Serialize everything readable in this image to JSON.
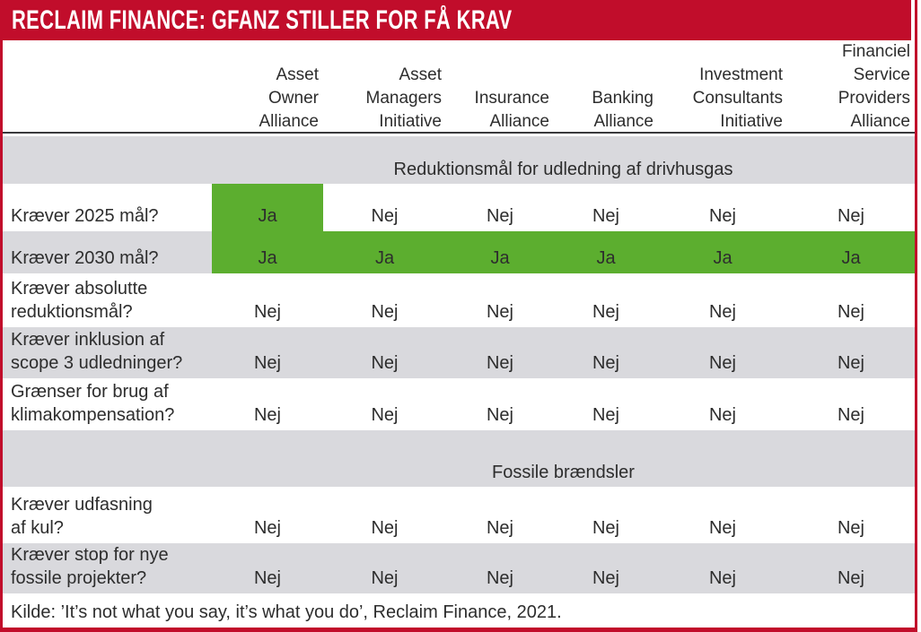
{
  "colors": {
    "red": "#c10d2b",
    "green": "#5cae2f",
    "gray": "#d9d9dd",
    "text": "#2d2d2d"
  },
  "chart_data": {
    "type": "table",
    "title": "RECLAIM FINANCE: GFANZ STILLER FOR FÅ KRAV",
    "yes_value": "Ja",
    "no_value": "Nej",
    "highlight_color": "#5cae2f",
    "column_headers": [
      [
        "Asset",
        "Owner",
        "Alliance"
      ],
      [
        "Asset",
        "Managers",
        "Initiative"
      ],
      [
        "Insurance",
        "Alliance"
      ],
      [
        "Banking",
        "Alliance"
      ],
      [
        "Investment",
        "Consultants",
        "Initiative"
      ],
      [
        "Financiel",
        "Service",
        "Providers",
        "Alliance"
      ]
    ],
    "sections": [
      {
        "heading": "Reduktionsmål for udledning af drivhusgas",
        "rows": [
          {
            "label_lines": [
              "Kræver 2025 mål?"
            ],
            "values": [
              "Ja",
              "Nej",
              "Nej",
              "Nej",
              "Nej",
              "Nej"
            ]
          },
          {
            "label_lines": [
              "Kræver 2030 mål?"
            ],
            "values": [
              "Ja",
              "Ja",
              "Ja",
              "Ja",
              "Ja",
              "Ja"
            ]
          },
          {
            "label_lines": [
              "Kræver absolutte",
              "reduktionsmål?"
            ],
            "values": [
              "Nej",
              "Nej",
              "Nej",
              "Nej",
              "Nej",
              "Nej"
            ]
          },
          {
            "label_lines": [
              "Kræver inklusion af",
              "scope 3 udledninger?"
            ],
            "values": [
              "Nej",
              "Nej",
              "Nej",
              "Nej",
              "Nej",
              "Nej"
            ]
          },
          {
            "label_lines": [
              "Grænser for brug af",
              "klimakompensation?"
            ],
            "values": [
              "Nej",
              "Nej",
              "Nej",
              "Nej",
              "Nej",
              "Nej"
            ]
          }
        ]
      },
      {
        "heading": "Fossile brændsler",
        "rows": [
          {
            "label_lines": [
              "Kræver udfasning",
              "af kul?"
            ],
            "values": [
              "Nej",
              "Nej",
              "Nej",
              "Nej",
              "Nej",
              "Nej"
            ]
          },
          {
            "label_lines": [
              "Kræver stop for nye",
              "fossile projekter?"
            ],
            "values": [
              "Nej",
              "Nej",
              "Nej",
              "Nej",
              "Nej",
              "Nej"
            ]
          }
        ]
      }
    ],
    "source": "Kilde: ’It’s not what you say, it’s what you do’, Reclaim Finance, 2021."
  }
}
